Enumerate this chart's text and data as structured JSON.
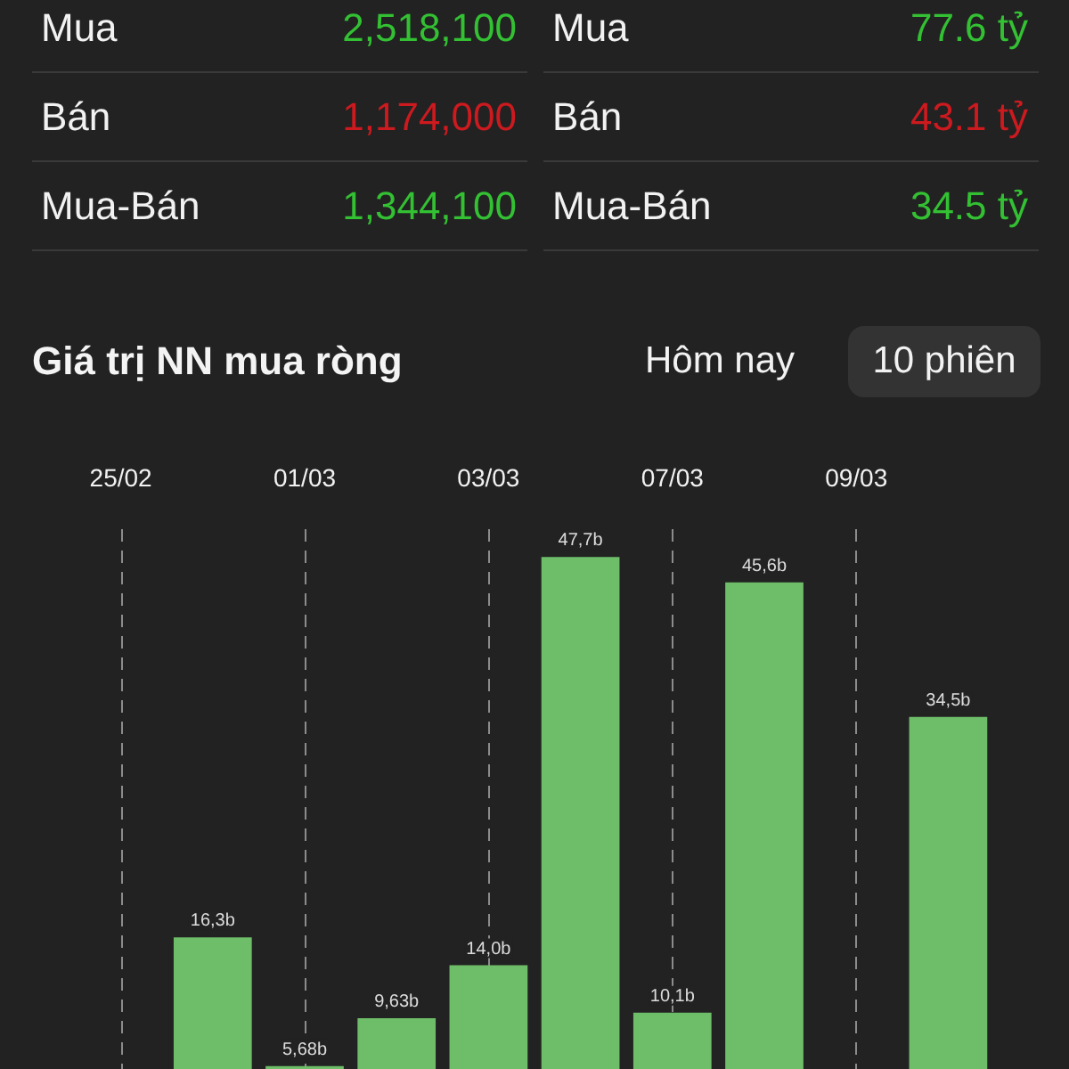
{
  "chart_data": [
    {
      "type": "other",
      "categories": [
        "Mua",
        "Bán",
        "Mua-Bán"
      ],
      "series": [
        {
          "values": [
            2518100,
            1174000,
            1344100
          ],
          "value_labels": [
            "2,518,100",
            "1,174,000",
            "1,344,100"
          ],
          "colors": [
            "#33c133",
            "#cc1a1f",
            "#33c133"
          ]
        },
        {
          "values": [
            77.6,
            43.1,
            34.5
          ],
          "value_labels": [
            "77.6 tỷ",
            "43.1 tỷ",
            "34.5 tỷ"
          ],
          "colors": [
            "#33c133",
            "#cc1a1f",
            "#33c133"
          ]
        }
      ]
    },
    {
      "type": "bar",
      "title": "Giá trị NN mua ròng",
      "annotations": [
        "Hôm nay",
        "10 phiên"
      ],
      "categories": [
        "25/02",
        null,
        "01/03",
        null,
        "03/03",
        null,
        "07/03",
        null,
        "09/03",
        null
      ],
      "values": [
        null,
        16.3,
        5.68,
        9.63,
        14.0,
        47.7,
        10.1,
        45.6,
        null,
        34.5
      ],
      "value_labels": [
        null,
        "16,3b",
        "5,68b",
        "9,63b",
        "14,0b",
        "47,7b",
        "10,1b",
        "45,6b",
        null,
        "34,5b"
      ],
      "color": "#6ebe69",
      "grid": "x",
      "tick_labels": "x"
    }
  ]
}
